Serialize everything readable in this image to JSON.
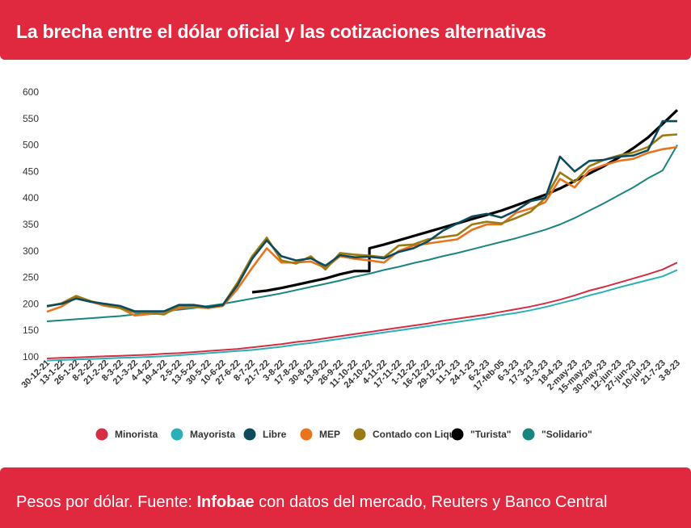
{
  "header": {
    "title": "La brecha entre el dólar oficial y las cotizaciones alternativas"
  },
  "footer": {
    "prefix": "Pesos por dólar. Fuente: ",
    "brand": "Infobae",
    "suffix": " con datos del mercado, Reuters y Banco Central"
  },
  "chart_data": {
    "type": "line",
    "title": "",
    "xlabel": "",
    "ylabel": "",
    "ylim": [
      90,
      600
    ],
    "y_ticks": [
      100,
      150,
      200,
      250,
      300,
      350,
      400,
      450,
      500,
      550,
      600
    ],
    "x_tick_labels": [
      "30-12-21",
      "13-1-22",
      "26-1-22",
      "8-2-22",
      "21-2-22",
      "8-3-22",
      "21-3-22",
      "4-4-22",
      "19-4-22",
      "2-5-22",
      "13-5-22",
      "30-5-22",
      "10-6-22",
      "27-6-22",
      "8-7-22",
      "21-7-22",
      "3-8-22",
      "17-8-22",
      "30-8-22",
      "13-9-22",
      "26-9-22",
      "11-10-22",
      "24-10-22",
      "4-11-22",
      "17-11-22",
      "1-12-22",
      "16-12-22",
      "29-12-22",
      "11-1-23",
      "24-1-23",
      "6-2-23",
      "17-feb-05",
      "6-3-23",
      "17-3-23",
      "31-3-23",
      "18-4-23",
      "2-may-23",
      "15-may-23",
      "30-may-23",
      "12-jun-23",
      "27-jun-23",
      "10-jul-23",
      "21-7-23",
      "3-8-23"
    ],
    "legend_position": "bottom",
    "series": [
      {
        "name": "Minorista",
        "color": "#d62d45",
        "values": [
          97,
          98,
          99,
          100,
          101,
          102,
          103,
          104,
          106,
          107,
          109,
          111,
          113,
          115,
          118,
          121,
          124,
          128,
          131,
          135,
          139,
          143,
          147,
          151,
          155,
          159,
          163,
          168,
          172,
          176,
          180,
          185,
          190,
          195,
          201,
          208,
          216,
          225,
          232,
          240,
          248,
          256,
          265,
          278
        ]
      },
      {
        "name": "Mayorista",
        "color": "#2bb0b8",
        "values": [
          93,
          94,
          95,
          96,
          97,
          98,
          99,
          100,
          101,
          103,
          105,
          107,
          109,
          111,
          113,
          116,
          119,
          123,
          126,
          130,
          134,
          138,
          142,
          146,
          150,
          154,
          158,
          162,
          166,
          170,
          174,
          179,
          183,
          188,
          194,
          201,
          208,
          216,
          223,
          231,
          238,
          245,
          252,
          264
        ]
      },
      {
        "name": "Libre",
        "color": "#0d4a5e",
        "values": [
          196,
          200,
          210,
          204,
          200,
          196,
          186,
          186,
          186,
          198,
          198,
          194,
          198,
          235,
          285,
          320,
          290,
          282,
          286,
          272,
          292,
          288,
          289,
          286,
          298,
          305,
          318,
          338,
          352,
          365,
          370,
          363,
          376,
          394,
          400,
          478,
          450,
          470,
          472,
          478,
          480,
          490,
          545,
          545
        ]
      },
      {
        "name": "MEP",
        "color": "#e8741e",
        "values": [
          185,
          195,
          212,
          204,
          196,
          192,
          178,
          181,
          182,
          192,
          194,
          192,
          196,
          228,
          268,
          305,
          278,
          278,
          280,
          268,
          290,
          285,
          282,
          278,
          300,
          310,
          314,
          318,
          322,
          340,
          350,
          350,
          372,
          380,
          392,
          436,
          420,
          452,
          462,
          470,
          474,
          485,
          492,
          496
        ]
      },
      {
        "name": "Contado con Liqui",
        "color": "#9a7a12",
        "values": [
          195,
          201,
          215,
          205,
          198,
          192,
          184,
          183,
          180,
          196,
          195,
          193,
          198,
          240,
          290,
          325,
          282,
          276,
          290,
          265,
          296,
          293,
          291,
          288,
          310,
          312,
          322,
          326,
          330,
          350,
          355,
          352,
          362,
          374,
          400,
          448,
          430,
          460,
          472,
          480,
          486,
          496,
          518,
          520
        ]
      },
      {
        "name": "\"Turista\"",
        "color": "#000000",
        "values": [
          null,
          null,
          null,
          null,
          null,
          null,
          null,
          null,
          null,
          null,
          null,
          null,
          null,
          null,
          222,
          225,
          230,
          236,
          242,
          248,
          256,
          262,
          305,
          312,
          320,
          328,
          336,
          344,
          352,
          360,
          368,
          376,
          386,
          396,
          406,
          418,
          432,
          446,
          460,
          476,
          494,
          514,
          540,
          566
        ]
      },
      {
        "name": "\"Solidario\"",
        "color": "#19857f",
        "values": [
          167,
          169,
          171,
          173,
          175,
          177,
          180,
          183,
          186,
          189,
          192,
          196,
          200,
          205,
          210,
          215,
          220,
          226,
          232,
          238,
          244,
          251,
          257,
          264,
          270,
          277,
          283,
          290,
          296,
          303,
          310,
          317,
          324,
          332,
          340,
          350,
          362,
          376,
          390,
          405,
          420,
          437,
          452,
          500
        ]
      }
    ]
  }
}
